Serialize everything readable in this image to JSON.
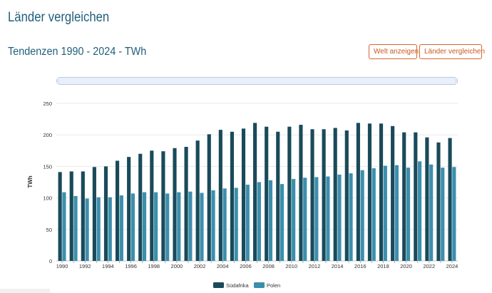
{
  "header": {
    "title": "Länder vergleichen",
    "subtitle": "Tendenzen 1990 - 2024 - TWh",
    "buttons": {
      "world": "Welt anzeigen",
      "compare": "Länder vergleichen"
    }
  },
  "colors": {
    "series1": "#1a4a5a",
    "series2": "#3b8fad",
    "accent": "#d4662c",
    "title": "#1f5f7a"
  },
  "chart_data": {
    "type": "bar",
    "title": "",
    "xlabel": "",
    "ylabel": "TWh",
    "ylim": [
      0,
      250
    ],
    "yticks": [
      0,
      50,
      100,
      150,
      200,
      250
    ],
    "grid": true,
    "legend": "bottom-center",
    "categories": [
      "1990",
      "1991",
      "1992",
      "1993",
      "1994",
      "1995",
      "1996",
      "1997",
      "1998",
      "1999",
      "2000",
      "2001",
      "2002",
      "2003",
      "2004",
      "2005",
      "2006",
      "2007",
      "2008",
      "2009",
      "2010",
      "2011",
      "2012",
      "2013",
      "2014",
      "2015",
      "2016",
      "2017",
      "2018",
      "2019",
      "2020",
      "2021",
      "2022",
      "2023",
      "2024"
    ],
    "tick_labels": [
      "1990",
      "",
      "1992",
      "",
      "1994",
      "",
      "1996",
      "",
      "1998",
      "",
      "2000",
      "",
      "2002",
      "",
      "2004",
      "",
      "2006",
      "",
      "2008",
      "",
      "2010",
      "",
      "2012",
      "",
      "2014",
      "",
      "2016",
      "",
      "2018",
      "",
      "2020",
      "",
      "2022",
      "",
      "2024"
    ],
    "series": [
      {
        "name": "Südafrika",
        "color": "#1a4a5a",
        "values": [
          141,
          142,
          142,
          149,
          150,
          159,
          165,
          170,
          175,
          174,
          179,
          181,
          191,
          201,
          208,
          205,
          210,
          219,
          213,
          205,
          213,
          216,
          209,
          209,
          211,
          207,
          219,
          218,
          218,
          214,
          204,
          204,
          196,
          188,
          195
        ]
      },
      {
        "name": "Polen",
        "color": "#3b8fad",
        "values": [
          109,
          103,
          99,
          101,
          101,
          104,
          107,
          109,
          109,
          107,
          109,
          110,
          108,
          112,
          115,
          116,
          121,
          125,
          128,
          122,
          130,
          132,
          133,
          134,
          137,
          139,
          144,
          147,
          151,
          152,
          148,
          158,
          153,
          148,
          149
        ]
      }
    ]
  }
}
